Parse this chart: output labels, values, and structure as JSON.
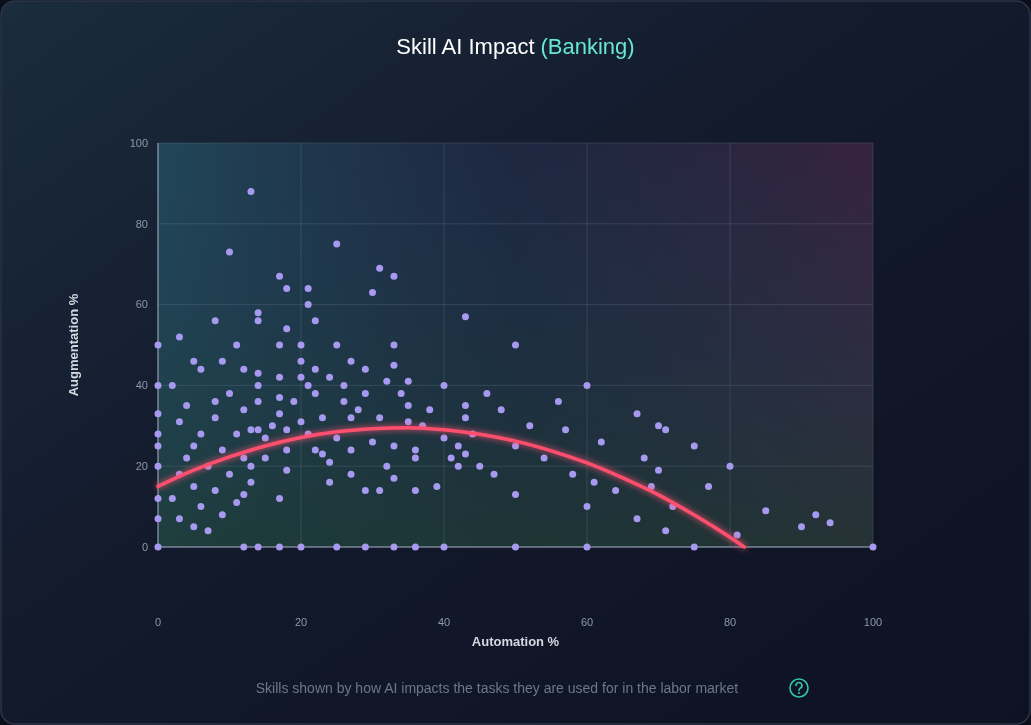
{
  "chart_data": {
    "type": "scatter",
    "title": "Skill AI Impact",
    "subtitle": "(Banking)",
    "xlabel": "Automation %",
    "ylabel": "Augmentation %",
    "annotations": [
      "Skills shown by how AI impacts the tasks they are used for in the labor market"
    ],
    "xlim": [
      0,
      100
    ],
    "ylim": [
      0,
      100
    ],
    "xticks": [
      0,
      20,
      40,
      60,
      80,
      100
    ],
    "yticks": [
      0,
      20,
      40,
      60,
      80,
      100
    ],
    "grid": true,
    "series": [
      {
        "color": "#a799f0",
        "marker": "circle",
        "x": [
          0,
          12,
          14,
          17,
          20,
          25,
          29,
          33,
          36,
          40,
          50,
          60,
          75,
          100,
          0,
          0,
          0,
          0,
          0,
          0,
          0,
          0,
          3,
          7,
          12,
          11,
          17,
          5,
          13,
          14,
          18,
          15,
          13,
          18,
          20,
          22,
          24,
          25,
          30,
          31,
          29,
          27,
          23,
          24,
          17,
          17,
          14,
          12,
          14,
          8,
          6,
          17,
          20,
          25,
          27,
          29,
          26,
          21,
          22,
          27,
          20,
          3,
          9,
          33,
          32,
          5,
          22,
          25,
          21,
          17,
          14,
          31,
          30,
          13,
          10,
          18,
          33,
          35,
          50,
          33,
          43,
          43,
          48,
          35,
          37,
          35,
          57,
          42,
          41,
          43,
          36,
          42,
          50,
          45,
          47,
          61,
          36,
          39,
          50,
          60,
          33,
          40,
          43,
          40,
          60,
          33,
          70,
          70,
          72,
          77,
          75,
          80,
          81,
          69,
          67,
          71,
          85,
          94,
          92,
          67,
          71,
          90,
          2,
          3,
          4,
          5,
          6,
          6,
          7,
          8,
          8,
          9,
          9,
          10,
          10,
          11,
          12,
          12,
          13,
          14,
          15,
          16,
          17,
          18,
          19,
          20,
          21,
          22,
          23,
          24,
          26,
          27,
          28,
          29,
          31,
          32,
          34,
          36,
          38,
          44,
          46,
          52,
          54,
          56,
          58,
          62,
          64,
          68,
          2,
          4,
          5,
          3,
          8,
          11,
          14,
          18,
          21
        ],
        "values": [
          0,
          0,
          0,
          0,
          0,
          0,
          0,
          0,
          0,
          0,
          0,
          0,
          0,
          0,
          50,
          40,
          33,
          28,
          25,
          20,
          12,
          7,
          7,
          4,
          13,
          11,
          12,
          25,
          29,
          29,
          29,
          27,
          20,
          19,
          31,
          24,
          21,
          27,
          26,
          14,
          14,
          18,
          23,
          16,
          33,
          37,
          36,
          44,
          43,
          36,
          44,
          50,
          50,
          50,
          46,
          38,
          40,
          40,
          44,
          32,
          42,
          31,
          46,
          25,
          41,
          5,
          56,
          75,
          64,
          67,
          56,
          69,
          63,
          88,
          73,
          64,
          67,
          41,
          50,
          45,
          35,
          32,
          34,
          31,
          30,
          35,
          29,
          25,
          22,
          23,
          24,
          20,
          25,
          20,
          18,
          16,
          14,
          15,
          13,
          10,
          17,
          27,
          57,
          40,
          40,
          50,
          30,
          19,
          10,
          15,
          25,
          20,
          3,
          15,
          33,
          29,
          9,
          6,
          8,
          7,
          4,
          5,
          12,
          18,
          22,
          15,
          10,
          28,
          20,
          14,
          32,
          24,
          8,
          18,
          38,
          28,
          22,
          34,
          16,
          40,
          22,
          30,
          42,
          24,
          36,
          46,
          28,
          38,
          32,
          42,
          36,
          24,
          34,
          44,
          32,
          20,
          38,
          22,
          34,
          28,
          38,
          30,
          22,
          36,
          18,
          26,
          14,
          22,
          40,
          35,
          46,
          52,
          56,
          50,
          58,
          54,
          60
        ]
      },
      {
        "type": "line",
        "color": "#ff4f6e",
        "line_style": "solid",
        "x": [
          0,
          5,
          10,
          15,
          20,
          25,
          30,
          35,
          40,
          45,
          50,
          55,
          60,
          65,
          70,
          75,
          80,
          82
        ],
        "values": [
          15,
          19,
          22.3,
          25,
          27.1,
          28.5,
          29.3,
          29.5,
          29,
          27.9,
          26.2,
          23.8,
          20.8,
          17.1,
          12.9,
          7.9,
          2.4,
          0
        ]
      }
    ]
  }
}
